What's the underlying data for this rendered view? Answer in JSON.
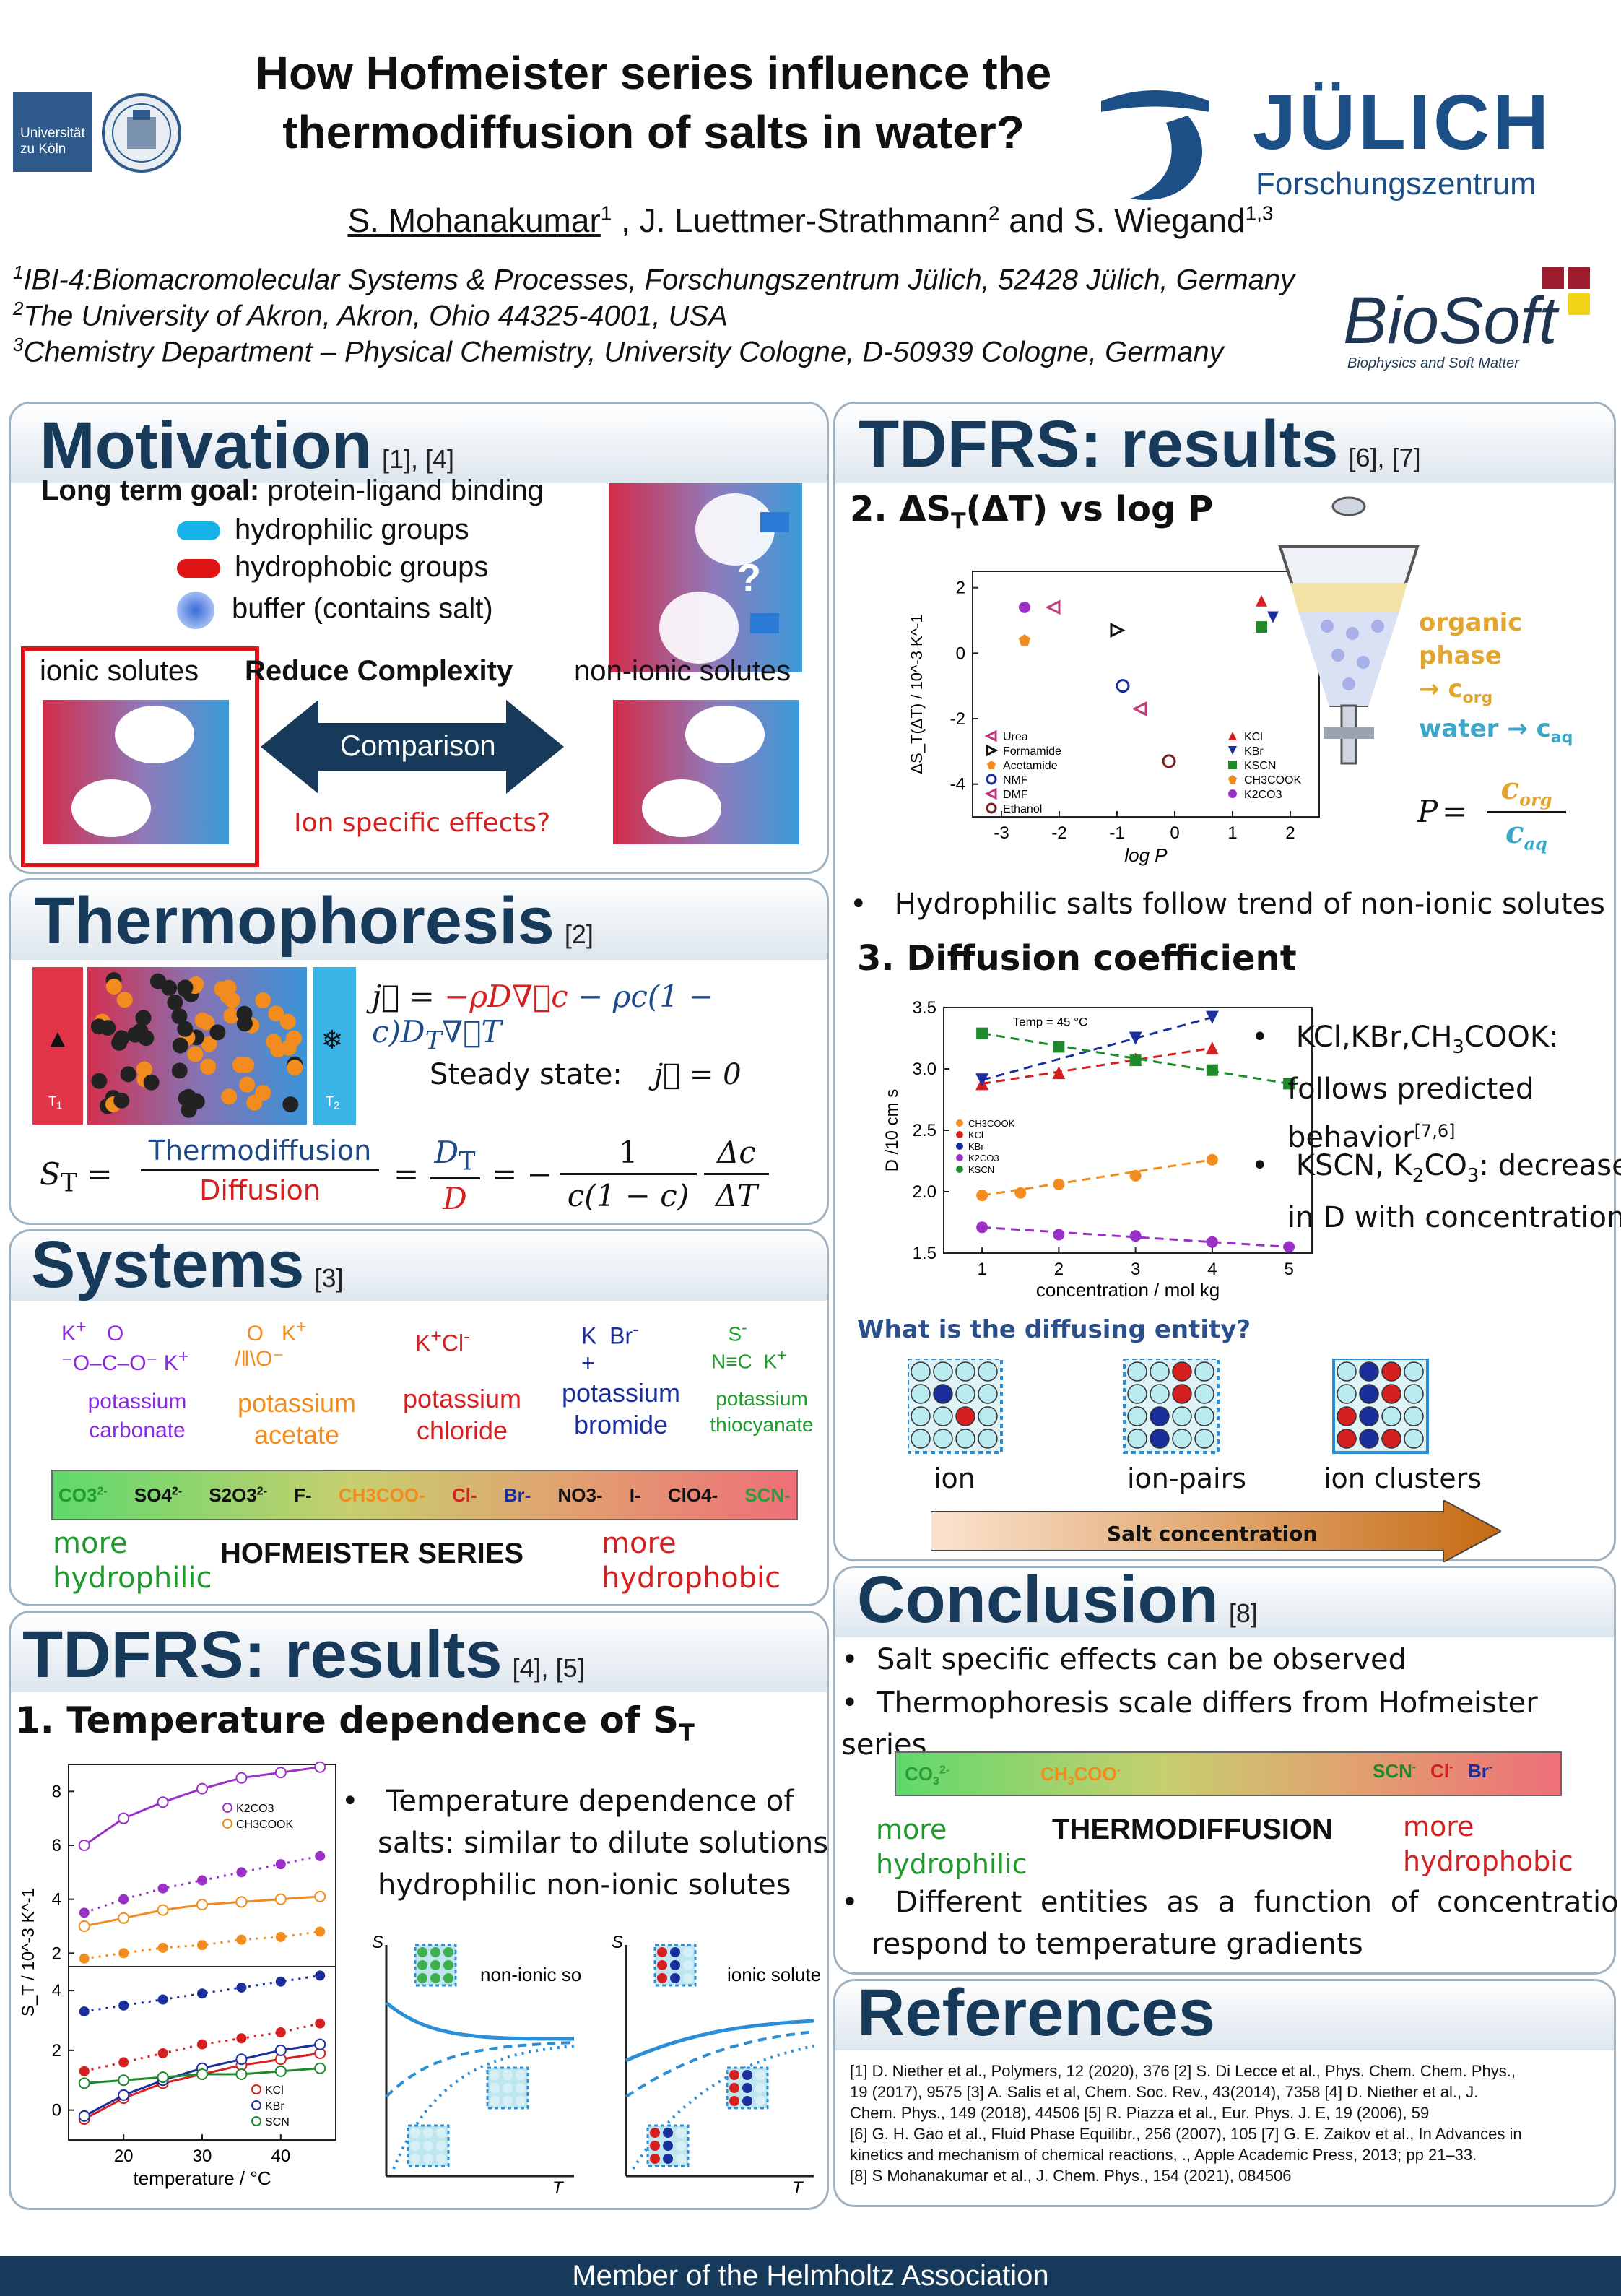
{
  "header": {
    "title_line1": "How Hofmeister series influence the",
    "title_line2": "thermodiffusion of salts in water?",
    "uni_logo_line1": "Universität",
    "uni_logo_line2": "zu Köln",
    "juelich_name": "JÜLICH",
    "juelich_sub": "Forschungszentrum",
    "biosoft": "BioSoft",
    "biosoft_sub": "Biophysics and Soft Matter",
    "author1": "S. Mohanakumar",
    "author1_sup": "1",
    "author2": " , J. Luettmer-Strathmann",
    "author2_sup": "2",
    "author3": " and S. Wiegand",
    "author3_sup": "1,3",
    "affiliations": [
      {
        "sup": "1",
        "text": "IBI-4:Biomacromolecular Systems & Processes, Forschungszentrum Jülich, 52428 Jülich, Germany"
      },
      {
        "sup": "2",
        "text": "The University of Akron, Akron, Ohio 44325-4001, USA"
      },
      {
        "sup": "3",
        "text": "Chemistry Department – Physical Chemistry, University Cologne, D-50939 Cologne, Germany"
      }
    ]
  },
  "motivation": {
    "title": "Motivation",
    "refs": "[1], [4]",
    "goal_label": "Long term goal:",
    "goal_text": " protein-ligand binding",
    "legend": [
      "hydrophilic groups",
      "hydrophobic groups",
      "buffer (contains salt)"
    ],
    "ionic": "ionic solutes",
    "reduce": "Reduce Complexity",
    "nonionic": "non-ionic solutes",
    "comparison": "Comparison",
    "ion_specific": "Ion specific effects?",
    "question": "?"
  },
  "thermophoresis": {
    "title": "Thermophoresis",
    "refs": "[2]",
    "t1": "T",
    "t1_sub": "1",
    "t2": "T",
    "t2_sub": "2",
    "steady": "Steady state:",
    "eq_frac_top": "Thermodiffusion",
    "eq_frac_bottom": "Diffusion"
  },
  "systems": {
    "title": "Systems",
    "refs": "[3]",
    "salts": [
      {
        "name": "potassium carbonate",
        "color": "#8a2be2"
      },
      {
        "name": "potassium acetate",
        "color": "#f28c1e"
      },
      {
        "name": "potassium chloride",
        "color": "#d62020"
      },
      {
        "name": "potassium bromide",
        "color": "#1a2e9c"
      },
      {
        "name": "potassium thiocyanate",
        "color": "#1f9a2c"
      }
    ],
    "hofmeister_ions": [
      "CO3 2-",
      "SO4 2-",
      "S2O3 2-",
      "F-",
      "CH3COO-",
      "Cl-",
      "Br-",
      "NO3-",
      "I-",
      "ClO4-",
      "SCN-"
    ],
    "more_hydrophilic": "more hydrophilic",
    "hofmeister_series": "HOFMEISTER SERIES",
    "more_hydrophobic": "more hydrophobic"
  },
  "tdfrs1": {
    "title": "TDFRS: results",
    "refs": "[4], [5]",
    "subtitle": "1. Temperature dependence of S",
    "subtitle_sub": "T",
    "bullet": "Temperature dependence of salts: similar to dilute solutions of hydrophilic non-ionic solutes",
    "nonionic_label": "non-ionic solutes",
    "ionic_label": "ionic solutes",
    "axis_T": "T",
    "axis_ST": "S"
  },
  "tdfrs2": {
    "title": "TDFRS: results",
    "refs": "[6], [7]",
    "sub2": "2. ΔS",
    "sub2_rest": "(ΔT) vs log P",
    "organic": "organic phase",
    "c_org": "→ c",
    "water": "water → c",
    "bullet1": "Hydrophilic salts follow trend of non-ionic  solutes",
    "sub3": "3. Diffusion coefficient",
    "bullet2": "KCl,KBr,CH3COOK: follows predicted behavior",
    "bullet2_sup": "[7,6]",
    "bullet3a": "KSCN, K",
    "bullet3b": "CO",
    "bullet3c": ": decrease in D with concentration",
    "entity_q": "What is the diffusing entity?",
    "ent_labels": [
      "ion",
      "ion-pairs",
      "ion clusters"
    ],
    "salt_conc": "Salt concentration"
  },
  "conclusion": {
    "title": "Conclusion",
    "refs": "[8]",
    "b1": "Salt specific effects can be observed",
    "b2": "Thermophoresis scale differs from Hofmeister series",
    "more_hydrophilic": "more hydrophilic",
    "thermodiffusion": "THERMODIFFUSION",
    "more_hydrophobic": "more hydrophobic",
    "b3": "Different entities as a function of concentration respond to temperature gradients"
  },
  "references": {
    "title": "References",
    "lines": [
      "[1] D. Niether et al., Polymers, 12 (2020), 376 [2] S. Di Lecce et al., Phys. Chem. Chem. Phys.,",
      "19 (2017), 9575 [3] A. Salis et al, Chem. Soc. Rev., 43(2014), 7358  [4] D. Niether et al., J.",
      "Chem. Phys., 149 (2018), 44506 [5] R. Piazza et al., Eur. Phys. J. E, 19 (2006), 59",
      "[6] G. H. Gao et al., Fluid Phase Equilibr., 256 (2007), 105 [7] G. E. Zaikov et al., In Advances in",
      "kinetics and mechanism of chemical reactions, ., Apple Academic Press, 2013; pp 21–33.",
      "[8] S Mohanakumar et al., J. Chem. Phys., 154 (2021), 084506"
    ]
  },
  "footer": "Member of the Helmholtz Association",
  "chart_data": [
    {
      "type": "scatter",
      "name_hint": "dST vs logP",
      "xlabel": "log P",
      "ylabel": "ΔS_T(ΔT) / 10^-3 K^-1",
      "xlim": [
        -3.5,
        2.5
      ],
      "ylim": [
        -5,
        2.5
      ],
      "xticks": [
        -3,
        -2,
        -1,
        0,
        1,
        2
      ],
      "yticks": [
        2,
        0,
        -2,
        -4
      ],
      "series": [
        {
          "name": "Urea",
          "x": -2.1,
          "y": 1.4,
          "marker": "tri-left",
          "color": "#c0397a"
        },
        {
          "name": "Formamide",
          "x": -1.0,
          "y": 0.7,
          "marker": "tri-right",
          "color": "#111111"
        },
        {
          "name": "Acetamide",
          "x": -2.6,
          "y": 0.4,
          "marker": "star",
          "color": "#f28c1e"
        },
        {
          "name": "NMF",
          "x": -0.9,
          "y": -1.0,
          "marker": "circle-open",
          "color": "#1a2e9c"
        },
        {
          "name": "DMF",
          "x": -0.6,
          "y": -1.7,
          "marker": "tri-left",
          "color": "#c0397a"
        },
        {
          "name": "Ethanol",
          "x": -0.1,
          "y": -3.3,
          "marker": "circle-open",
          "color": "#7a1f1f"
        },
        {
          "name": "KCl",
          "x": 1.5,
          "y": 1.6,
          "marker": "tri-up",
          "color": "#d62020"
        },
        {
          "name": "KBr",
          "x": 1.7,
          "y": 1.1,
          "marker": "tri-down",
          "color": "#1a2e9c"
        },
        {
          "name": "KSCN",
          "x": 1.5,
          "y": 0.8,
          "marker": "square",
          "color": "#1f8a2c"
        },
        {
          "name": "CH3COOK",
          "x": -2.6,
          "y": 0.4,
          "marker": "pentagon",
          "color": "#f28c1e"
        },
        {
          "name": "K2CO3",
          "x": -2.6,
          "y": 1.4,
          "marker": "circle",
          "color": "#9b30c8"
        }
      ]
    },
    {
      "type": "line",
      "name_hint": "D vs concentration",
      "xlabel": "concentration / mol  kg",
      "ylabel": "D /10 cm s",
      "annotation": "Temp = 45 °C",
      "xlim": [
        0.5,
        5.3
      ],
      "ylim": [
        1.5,
        3.5
      ],
      "xticks": [
        1,
        2,
        3,
        4,
        5
      ],
      "yticks": [
        1.5,
        2.0,
        2.5,
        3.0,
        3.5
      ],
      "series": [
        {
          "name": "CH3COOK",
          "color": "#f28c1e",
          "x": [
            1,
            1.5,
            2,
            3,
            4
          ],
          "y": [
            1.97,
            1.99,
            2.06,
            2.13,
            2.26
          ]
        },
        {
          "name": "KCl",
          "color": "#d62020",
          "x": [
            1,
            2,
            3,
            4
          ],
          "y": [
            2.88,
            2.97,
            3.08,
            3.17
          ]
        },
        {
          "name": "KBr",
          "color": "#1a2e9c",
          "x": [
            1,
            3,
            4
          ],
          "y": [
            2.91,
            3.25,
            3.42
          ]
        },
        {
          "name": "K2CO3",
          "color": "#9b30c8",
          "x": [
            1,
            2,
            3,
            4,
            5
          ],
          "y": [
            1.71,
            1.65,
            1.64,
            1.59,
            1.55
          ]
        },
        {
          "name": "KSCN",
          "color": "#1f8a2c",
          "x": [
            1,
            2,
            3,
            4,
            5
          ],
          "y": [
            3.29,
            3.18,
            3.07,
            2.99,
            2.88
          ]
        }
      ]
    },
    {
      "type": "line",
      "name_hint": "ST vs temperature",
      "xlabel": "temperature / °C",
      "ylabel": "S_T / 10^-3 K^-1",
      "xlim": [
        13,
        47
      ],
      "top_ylim": [
        1.5,
        9
      ],
      "bottom_ylim": [
        -1,
        4.8
      ],
      "series_top": [
        {
          "name": "K2CO3",
          "color": "#9b30c8",
          "x": [
            15,
            20,
            25,
            30,
            35,
            40,
            45
          ],
          "y": [
            6.0,
            7.0,
            7.6,
            8.1,
            8.5,
            8.7,
            8.9
          ]
        },
        {
          "name": "K2CO3 dotted",
          "color": "#9b30c8",
          "x": [
            15,
            20,
            25,
            30,
            35,
            40,
            45
          ],
          "y": [
            3.5,
            4.0,
            4.4,
            4.7,
            5.0,
            5.3,
            5.6
          ]
        },
        {
          "name": "CH3COOK",
          "color": "#f28c1e",
          "x": [
            15,
            20,
            25,
            30,
            35,
            40,
            45
          ],
          "y": [
            3.0,
            3.3,
            3.6,
            3.8,
            3.9,
            4.0,
            4.1
          ]
        },
        {
          "name": "CH3COOK dotted",
          "color": "#f28c1e",
          "x": [
            15,
            20,
            25,
            30,
            35,
            40,
            45
          ],
          "y": [
            1.8,
            2.0,
            2.2,
            2.3,
            2.5,
            2.6,
            2.8
          ]
        }
      ],
      "series_bottom": [
        {
          "name": "KBr dotted",
          "color": "#1a2e9c",
          "x": [
            15,
            20,
            25,
            30,
            35,
            40,
            45
          ],
          "y": [
            3.3,
            3.5,
            3.7,
            3.9,
            4.1,
            4.3,
            4.5
          ]
        },
        {
          "name": "KCl dotted",
          "color": "#d62020",
          "x": [
            15,
            20,
            25,
            30,
            35,
            40,
            45
          ],
          "y": [
            1.3,
            1.6,
            1.9,
            2.2,
            2.4,
            2.6,
            2.9
          ]
        },
        {
          "name": "KCl",
          "color": "#d62020",
          "x": [
            15,
            20,
            25,
            30,
            35,
            40,
            45
          ],
          "y": [
            -0.3,
            0.4,
            0.9,
            1.2,
            1.5,
            1.7,
            1.9
          ]
        },
        {
          "name": "KBr",
          "color": "#1a2e9c",
          "x": [
            15,
            20,
            25,
            30,
            35,
            40,
            45
          ],
          "y": [
            -0.2,
            0.5,
            1.0,
            1.4,
            1.7,
            2.0,
            2.2
          ]
        },
        {
          "name": "SCN",
          "color": "#1f8a2c",
          "x": [
            15,
            20,
            25,
            30,
            35,
            40,
            45
          ],
          "y": [
            0.9,
            1.0,
            1.1,
            1.2,
            1.2,
            1.3,
            1.4
          ]
        }
      ],
      "legend_top": [
        "K2CO3",
        "CH3COOK"
      ],
      "legend_bottom": [
        "KCl",
        "KBr",
        "SCN"
      ]
    }
  ],
  "colors": {
    "heading": "#173a5a",
    "arrow": "#173a5a",
    "ionspec": "#d62020",
    "organic": "#e2a52f",
    "water": "#3aa6c8",
    "footer_bg": "#173a5a"
  }
}
